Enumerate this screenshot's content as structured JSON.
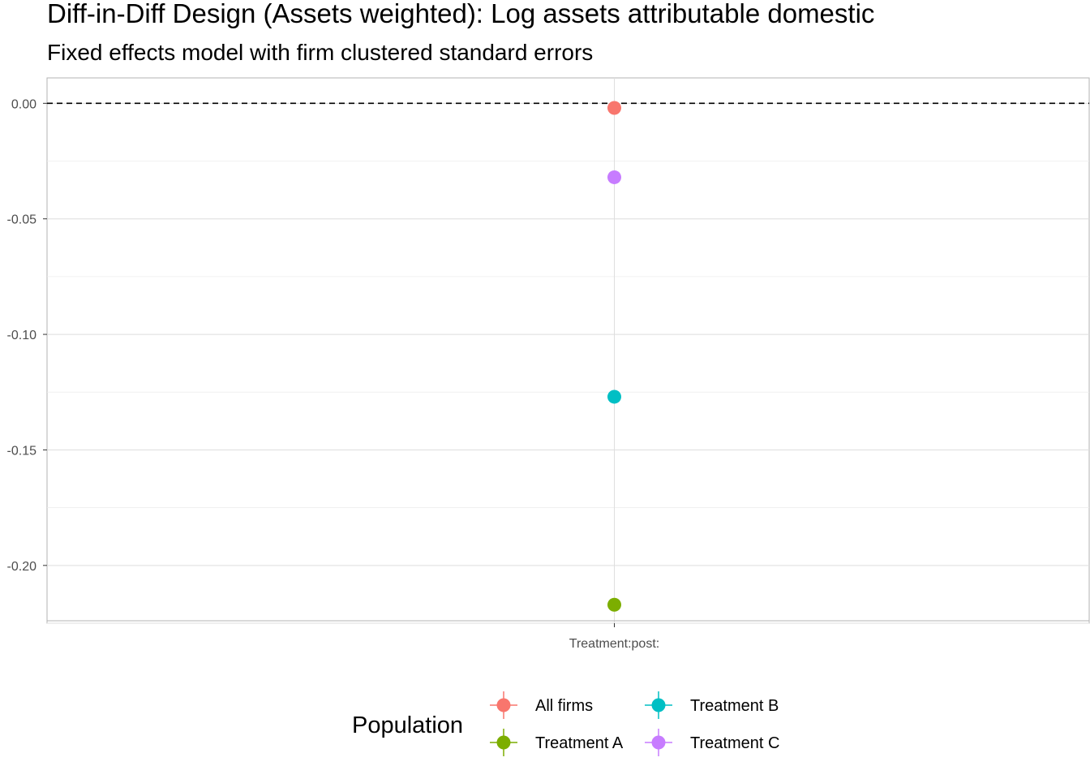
{
  "chart_data": {
    "type": "scatter",
    "title": "Diff-in-Diff Design (Assets weighted): Log assets attributable domestic",
    "subtitle": "Fixed effects model with firm clustered standard errors",
    "xlabel": "",
    "ylabel": "",
    "categories": [
      "Treatment:post:"
    ],
    "ylim": [
      -0.225,
      0.011
    ],
    "yticks": [
      0.0,
      -0.05,
      -0.1,
      -0.15,
      -0.2
    ],
    "ytick_labels": [
      "0.00",
      "-0.05",
      "-0.10",
      "-0.15",
      "-0.20"
    ],
    "reference_line": {
      "y": 0,
      "style": "dashed"
    },
    "grid": true,
    "legend": {
      "title": "Population",
      "placement": "bottom"
    },
    "series": [
      {
        "name": "All firms",
        "color": "#F8766D",
        "values": [
          -0.002
        ]
      },
      {
        "name": "Treatment A",
        "color": "#7CAE00",
        "values": [
          -0.217
        ]
      },
      {
        "name": "Treatment B",
        "color": "#00BFC4",
        "values": [
          -0.127
        ]
      },
      {
        "name": "Treatment C",
        "color": "#C77CFF",
        "values": [
          -0.032
        ]
      }
    ]
  }
}
